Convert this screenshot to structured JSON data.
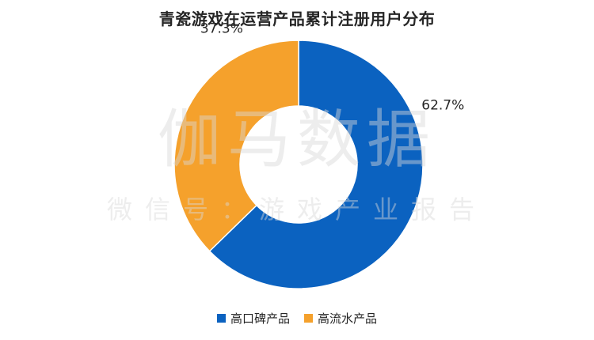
{
  "watermark": {
    "main": "伽马数据",
    "sub": "微信号：游戏产业报告"
  },
  "chart_data": {
    "type": "pie",
    "title": "青瓷游戏在运营产品累计注册用户分布",
    "donut": true,
    "categories": [
      "高口碑产品",
      "高流水产品"
    ],
    "values": [
      62.7,
      37.3
    ],
    "data_labels": [
      "62.7%",
      "37.3%"
    ],
    "colors": [
      "#0b62c0",
      "#f5a12c"
    ],
    "legend_position": "bottom"
  }
}
